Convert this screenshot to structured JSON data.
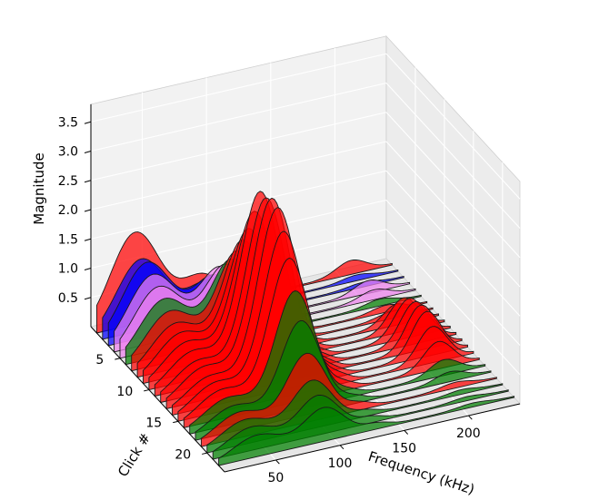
{
  "chart_data": {
    "type": "area",
    "subtype": "3d-waterfall",
    "title": "",
    "xlabel": "Frequency (kHz)",
    "ylabel": "Click #",
    "zlabel": "Magnitude",
    "xticks": [
      "50",
      "100",
      "150",
      "200"
    ],
    "yticks": [
      "5",
      "10",
      "15",
      "20"
    ],
    "zticks": [
      "0.5",
      "1.0",
      "1.5",
      "2.0",
      "2.5",
      "3.0",
      "3.5"
    ],
    "xlim": [
      10,
      240
    ],
    "ylim": [
      0,
      23
    ],
    "zlim": [
      0,
      3.8
    ],
    "grid": true,
    "colors": {
      "red": "#ff0000",
      "green": "#008000",
      "blue": "#0000ff",
      "violet": "#ee82ee"
    },
    "series": [
      {
        "click": 1,
        "color": "red",
        "peaks": [
          [
            40,
            27,
            1.55
          ],
          [
            92,
            22,
            0.55
          ],
          [
            133,
            14,
            0.12
          ],
          [
            208,
            16,
            0.22
          ]
        ]
      },
      {
        "click": 2,
        "color": "blue",
        "peaks": [
          [
            40,
            27,
            1.2
          ],
          [
            92,
            22,
            0.55
          ],
          [
            133,
            14,
            0.1
          ],
          [
            208,
            16,
            0.08
          ]
        ]
      },
      {
        "click": 3,
        "color": "blue",
        "peaks": [
          [
            40,
            27,
            1.25
          ],
          [
            92,
            22,
            0.75
          ],
          [
            133,
            14,
            0.1
          ],
          [
            208,
            16,
            0.06
          ]
        ]
      },
      {
        "click": 4,
        "color": "violet",
        "peaks": [
          [
            40,
            27,
            1.15
          ],
          [
            92,
            22,
            1.0
          ],
          [
            133,
            14,
            0.1
          ],
          [
            208,
            16,
            0.2
          ]
        ]
      },
      {
        "click": 5,
        "color": "violet",
        "peaks": [
          [
            40,
            27,
            1.05
          ],
          [
            92,
            22,
            1.15
          ],
          [
            133,
            14,
            0.1
          ],
          [
            208,
            16,
            0.15
          ]
        ]
      },
      {
        "click": 6,
        "color": "green",
        "peaks": [
          [
            40,
            27,
            0.95
          ],
          [
            92,
            22,
            1.35
          ],
          [
            133,
            14,
            0.1
          ],
          [
            208,
            16,
            0.1
          ]
        ]
      },
      {
        "click": 7,
        "color": "red",
        "peaks": [
          [
            40,
            27,
            0.85
          ],
          [
            92,
            22,
            1.6
          ],
          [
            133,
            14,
            0.1
          ],
          [
            208,
            16,
            0.1
          ]
        ]
      },
      {
        "click": 8,
        "color": "red",
        "peaks": [
          [
            40,
            27,
            0.75
          ],
          [
            92,
            22,
            1.9
          ],
          [
            133,
            14,
            0.1
          ],
          [
            208,
            16,
            0.1
          ]
        ]
      },
      {
        "click": 9,
        "color": "red",
        "peaks": [
          [
            40,
            27,
            0.7
          ],
          [
            92,
            22,
            2.2
          ],
          [
            133,
            14,
            0.15
          ],
          [
            208,
            16,
            0.35
          ]
        ]
      },
      {
        "click": 10,
        "color": "red",
        "peaks": [
          [
            40,
            27,
            0.65
          ],
          [
            92,
            22,
            2.6
          ],
          [
            133,
            14,
            0.15
          ],
          [
            208,
            16,
            0.55
          ]
        ]
      },
      {
        "click": 11,
        "color": "red",
        "peaks": [
          [
            40,
            27,
            0.6
          ],
          [
            92,
            22,
            3.05
          ],
          [
            133,
            14,
            0.15
          ],
          [
            208,
            16,
            0.65
          ]
        ]
      },
      {
        "click": 12,
        "color": "red",
        "peaks": [
          [
            40,
            27,
            0.55
          ],
          [
            92,
            22,
            3.05
          ],
          [
            133,
            14,
            0.15
          ],
          [
            208,
            16,
            0.7
          ]
        ]
      },
      {
        "click": 13,
        "color": "red",
        "peaks": [
          [
            40,
            27,
            0.55
          ],
          [
            92,
            22,
            3.15
          ],
          [
            133,
            14,
            0.15
          ],
          [
            208,
            16,
            0.75
          ]
        ]
      },
      {
        "click": 14,
        "color": "red",
        "peaks": [
          [
            40,
            27,
            0.5
          ],
          [
            92,
            22,
            3.1
          ],
          [
            133,
            14,
            0.15
          ],
          [
            208,
            16,
            0.75
          ]
        ]
      },
      {
        "click": 15,
        "color": "red",
        "peaks": [
          [
            40,
            27,
            0.5
          ],
          [
            92,
            22,
            2.8
          ],
          [
            133,
            14,
            0.15
          ],
          [
            208,
            16,
            0.6
          ]
        ]
      },
      {
        "click": 16,
        "color": "red",
        "peaks": [
          [
            40,
            27,
            0.48
          ],
          [
            92,
            22,
            2.45
          ],
          [
            133,
            14,
            0.12
          ],
          [
            208,
            16,
            0.45
          ]
        ]
      },
      {
        "click": 17,
        "color": "green",
        "peaks": [
          [
            40,
            27,
            0.45
          ],
          [
            92,
            22,
            2.0
          ],
          [
            133,
            14,
            0.1
          ],
          [
            208,
            16,
            0.25
          ]
        ]
      },
      {
        "click": 18,
        "color": "green",
        "peaks": [
          [
            40,
            27,
            0.42
          ],
          [
            92,
            22,
            1.6
          ],
          [
            133,
            14,
            0.1
          ],
          [
            208,
            16,
            0.15
          ]
        ]
      },
      {
        "click": 19,
        "color": "red",
        "peaks": [
          [
            40,
            27,
            0.42
          ],
          [
            92,
            22,
            1.15
          ],
          [
            133,
            14,
            0.1
          ],
          [
            208,
            16,
            0.08
          ]
        ]
      },
      {
        "click": 20,
        "color": "green",
        "peaks": [
          [
            40,
            27,
            0.4
          ],
          [
            92,
            22,
            0.8
          ],
          [
            133,
            14,
            0.08
          ],
          [
            208,
            16,
            0.06
          ]
        ]
      },
      {
        "click": 21,
        "color": "green",
        "peaks": [
          [
            40,
            27,
            0.38
          ],
          [
            92,
            22,
            0.65
          ],
          [
            133,
            14,
            0.08
          ],
          [
            208,
            16,
            0.05
          ]
        ]
      },
      {
        "click": 22,
        "color": "green",
        "peaks": [
          [
            40,
            27,
            0.35
          ],
          [
            92,
            22,
            0.55
          ],
          [
            133,
            14,
            0.08
          ],
          [
            208,
            16,
            0.05
          ]
        ]
      }
    ]
  }
}
